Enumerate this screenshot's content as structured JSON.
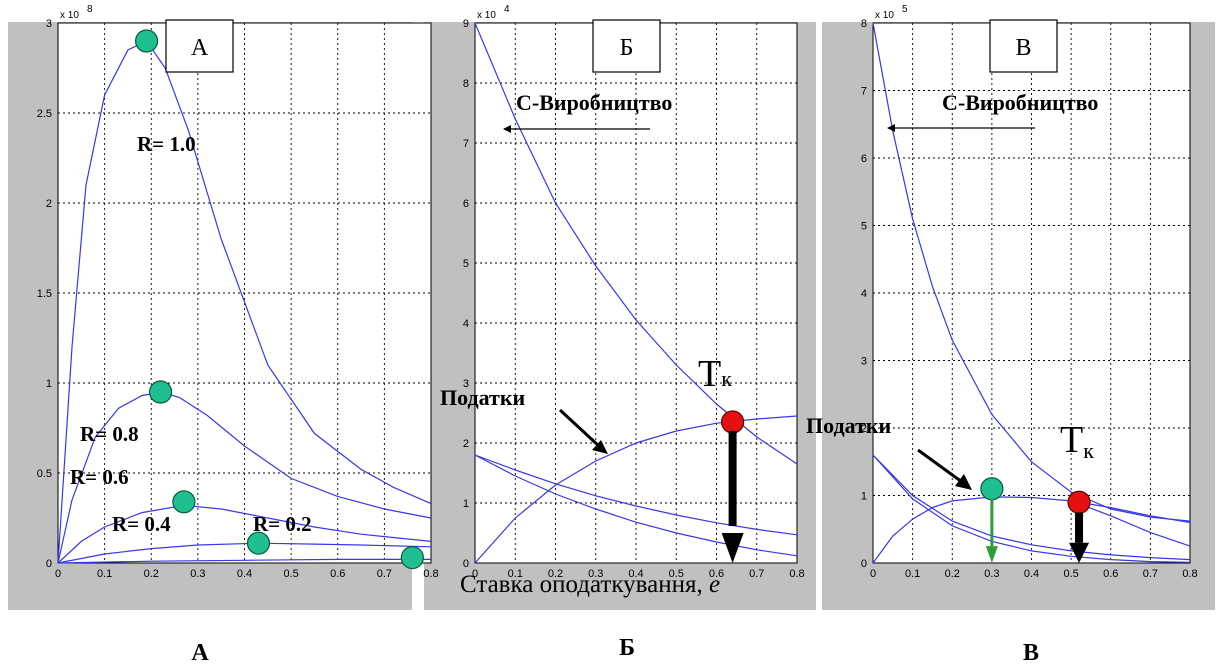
{
  "panels": [
    {
      "id": "A",
      "title": "А",
      "caption": "А",
      "scale": "x 10",
      "scale_exp": "8"
    },
    {
      "id": "B",
      "title": "Б",
      "caption": "Б",
      "scale": "x 10",
      "scale_exp": "4",
      "production_label": "С-Виробництво",
      "taxes_label": "Податки",
      "tk_label": "T",
      "tk_sub": "к",
      "xlabel_text": "Ставка оподаткування,",
      "xlabel_var": "e"
    },
    {
      "id": "V",
      "title": "В",
      "caption": "В",
      "scale": "x 10",
      "scale_exp": "5",
      "production_label": "С-Виробництво",
      "taxes_label": "Податки",
      "tk_label": "T",
      "tk_sub": "к"
    }
  ],
  "colors": {
    "curve": "#3838e8",
    "green_marker": "#1fbf8f",
    "red_marker": "#e61010",
    "green_arrow": "#2e9e3a",
    "frame": "#c0c0c0"
  },
  "chart_data": [
    {
      "type": "line",
      "panel": "A",
      "xlim": [
        0,
        0.8
      ],
      "ylim": [
        0,
        3
      ],
      "y_multiplier": "x 10^8",
      "xticks": [
        "0",
        "0.1",
        "0.2",
        "0.3",
        "0.4",
        "0.5",
        "0.6",
        "0.7",
        "0.8"
      ],
      "yticks": [
        "0",
        "0.5",
        "1",
        "1.5",
        "2",
        "2.5",
        "3"
      ],
      "grid": true,
      "series": [
        {
          "name": "R= 1.0",
          "x": [
            0,
            0.03,
            0.06,
            0.1,
            0.15,
            0.19,
            0.23,
            0.28,
            0.35,
            0.45,
            0.55,
            0.65,
            0.72,
            0.8
          ],
          "y": [
            0,
            1.2,
            2.1,
            2.6,
            2.85,
            2.9,
            2.75,
            2.4,
            1.8,
            1.1,
            0.72,
            0.52,
            0.42,
            0.33
          ]
        },
        {
          "name": "R= 0.8",
          "x": [
            0,
            0.03,
            0.08,
            0.13,
            0.18,
            0.22,
            0.26,
            0.32,
            0.4,
            0.5,
            0.6,
            0.7,
            0.8
          ],
          "y": [
            0,
            0.35,
            0.7,
            0.86,
            0.93,
            0.95,
            0.92,
            0.82,
            0.65,
            0.47,
            0.37,
            0.3,
            0.25
          ]
        },
        {
          "name": "R= 0.6",
          "x": [
            0,
            0.05,
            0.1,
            0.18,
            0.27,
            0.35,
            0.45,
            0.55,
            0.65,
            0.8
          ],
          "y": [
            0,
            0.12,
            0.2,
            0.28,
            0.32,
            0.3,
            0.25,
            0.2,
            0.16,
            0.12
          ]
        },
        {
          "name": "R= 0.4",
          "x": [
            0,
            0.1,
            0.2,
            0.3,
            0.43,
            0.55,
            0.65,
            0.8
          ],
          "y": [
            0,
            0.05,
            0.08,
            0.1,
            0.11,
            0.105,
            0.1,
            0.09
          ]
        },
        {
          "name": "R= 0.2",
          "x": [
            0,
            0.2,
            0.4,
            0.6,
            0.76,
            0.8
          ],
          "y": [
            0,
            0.01,
            0.015,
            0.02,
            0.02,
            0.02
          ]
        }
      ],
      "markers": [
        {
          "x": 0.19,
          "y": 2.9,
          "color": "green"
        },
        {
          "x": 0.22,
          "y": 0.95,
          "color": "green"
        },
        {
          "x": 0.27,
          "y": 0.34,
          "color": "green"
        },
        {
          "x": 0.43,
          "y": 0.11,
          "color": "green"
        },
        {
          "x": 0.76,
          "y": 0.03,
          "color": "green"
        }
      ]
    },
    {
      "type": "line",
      "panel": "Б",
      "xlim": [
        0,
        0.8
      ],
      "ylim": [
        0,
        9
      ],
      "y_multiplier": "x 10^4",
      "xlabel": "Ставка оподаткування, e",
      "xticks": [
        "0",
        "0.1",
        "0.2",
        "0.3",
        "0.4",
        "0.5",
        "0.6",
        "0.7",
        "0.8"
      ],
      "yticks": [
        "0",
        "1",
        "2",
        "3",
        "4",
        "5",
        "6",
        "7",
        "8",
        "9"
      ],
      "grid": true,
      "series": [
        {
          "name": "С-Виробництво",
          "x": [
            0,
            0.1,
            0.2,
            0.3,
            0.4,
            0.5,
            0.6,
            0.7,
            0.8
          ],
          "y": [
            9.0,
            7.4,
            6.0,
            4.95,
            4.05,
            3.3,
            2.65,
            2.1,
            1.65
          ]
        },
        {
          "name": "Податки",
          "x": [
            0,
            0.1,
            0.2,
            0.3,
            0.4,
            0.5,
            0.6,
            0.7,
            0.8
          ],
          "y": [
            0,
            0.75,
            1.3,
            1.7,
            2.0,
            2.2,
            2.33,
            2.4,
            2.45
          ]
        },
        {
          "x": [
            0,
            0.1,
            0.2,
            0.3,
            0.4,
            0.5,
            0.6,
            0.7,
            0.8
          ],
          "y": [
            1.8,
            1.55,
            1.32,
            1.12,
            0.95,
            0.8,
            0.67,
            0.56,
            0.47
          ]
        },
        {
          "x": [
            0,
            0.1,
            0.2,
            0.3,
            0.4,
            0.5,
            0.6,
            0.7,
            0.8
          ],
          "y": [
            1.8,
            1.45,
            1.15,
            0.9,
            0.68,
            0.5,
            0.35,
            0.22,
            0.12
          ]
        }
      ],
      "markers": [
        {
          "x": 0.64,
          "y": 2.35,
          "color": "red",
          "label": "Tк"
        }
      ]
    },
    {
      "type": "line",
      "panel": "В",
      "xlim": [
        0,
        0.8
      ],
      "ylim": [
        0,
        8
      ],
      "y_multiplier": "x 10^5",
      "xticks": [
        "0",
        "0.1",
        "0.2",
        "0.3",
        "0.4",
        "0.5",
        "0.6",
        "0.7",
        "0.8"
      ],
      "yticks": [
        "0",
        "1",
        "2",
        "3",
        "4",
        "5",
        "6",
        "7",
        "8"
      ],
      "grid": true,
      "series": [
        {
          "name": "С-Виробництво",
          "x": [
            0,
            0.05,
            0.1,
            0.15,
            0.2,
            0.3,
            0.4,
            0.5,
            0.6,
            0.7,
            0.8
          ],
          "y": [
            8.0,
            6.4,
            5.1,
            4.1,
            3.3,
            2.2,
            1.5,
            1.05,
            0.8,
            0.68,
            0.62
          ]
        },
        {
          "name": "Податки",
          "x": [
            0,
            0.05,
            0.1,
            0.15,
            0.2,
            0.3,
            0.4,
            0.5,
            0.6,
            0.7,
            0.8
          ],
          "y": [
            0,
            0.4,
            0.65,
            0.82,
            0.92,
            0.98,
            0.97,
            0.92,
            0.82,
            0.7,
            0.6
          ]
        },
        {
          "x": [
            0,
            0.1,
            0.2,
            0.3,
            0.4,
            0.5,
            0.6,
            0.7,
            0.8
          ],
          "y": [
            1.6,
            1.0,
            0.62,
            0.4,
            0.27,
            0.18,
            0.12,
            0.08,
            0.05
          ]
        },
        {
          "x": [
            0,
            0.1,
            0.2,
            0.3,
            0.4,
            0.5,
            0.6,
            0.7,
            0.8
          ],
          "y": [
            1.6,
            0.95,
            0.55,
            0.32,
            0.18,
            0.1,
            0.05,
            0.02,
            0.01
          ]
        },
        {
          "x": [
            0.5,
            0.6,
            0.7,
            0.8
          ],
          "y": [
            0.92,
            0.7,
            0.45,
            0.25
          ]
        }
      ],
      "markers": [
        {
          "x": 0.3,
          "y": 1.1,
          "color": "green"
        },
        {
          "x": 0.52,
          "y": 0.9,
          "color": "red",
          "label": "Tк"
        }
      ]
    }
  ]
}
